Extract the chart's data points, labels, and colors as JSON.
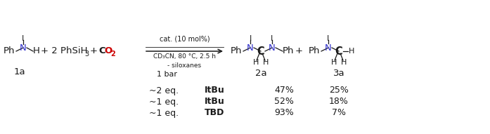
{
  "bg_color": "#ffffff",
  "fig_width": 6.97,
  "fig_height": 1.91,
  "dpi": 100,
  "colors": {
    "black": "#1a1a1a",
    "blue": "#3333cc",
    "red": "#cc0000"
  },
  "table_rows": [
    {
      "eq": "~2 eq.",
      "cat": "ItBu",
      "yield_2a": "47%",
      "yield_3a": "25%"
    },
    {
      "eq": "~1 eq.",
      "cat": "ItBu",
      "yield_2a": "52%",
      "yield_3a": "18%"
    },
    {
      "eq": "~1 eq.",
      "cat": "TBD",
      "yield_2a": "93%",
      "yield_3a": "7%"
    }
  ],
  "fs_main": 9.5,
  "fs_sub": 7.0,
  "fs_label": 9.5,
  "fs_table": 9.0,
  "fs_small_chem": 8.0,
  "fs_bold_chem": 10.5
}
